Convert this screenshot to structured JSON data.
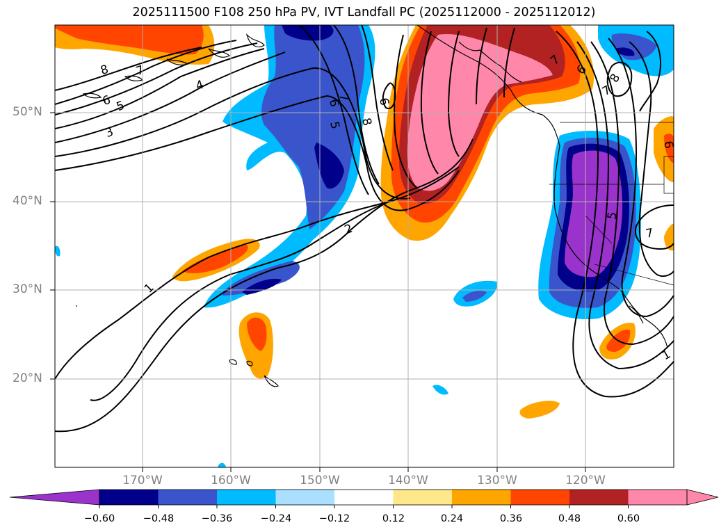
{
  "title": "2025111500 F108 250 hPa PV, IVT Landfall PC (2025112000 - 2025112012)",
  "lat_labels": [
    "50°N",
    "40°N",
    "30°N",
    "20°N"
  ],
  "lon_labels": [
    "170°W",
    "160°W",
    "150°W",
    "140°W",
    "130°W",
    "120°W"
  ],
  "colorbar": {
    "ticks": [
      "−0.60",
      "−0.48",
      "−0.36",
      "−0.24",
      "−0.12",
      "0.12",
      "0.24",
      "0.36",
      "0.48",
      "0.60"
    ],
    "colors": [
      "#9933cc",
      "#00008b",
      "#3a55cc",
      "#00bbff",
      "#aadfff",
      "#ffffff",
      "#ffe88a",
      "#ffa500",
      "#ff4500",
      "#b22222",
      "#ff88aa",
      "#ff88aa"
    ]
  },
  "contour_labels": [
    "8",
    "7",
    "4",
    "6",
    "5",
    "3",
    "1",
    "2",
    "7",
    "6",
    "5",
    "8",
    "6",
    "7",
    "7",
    "6",
    "8",
    "6",
    "5",
    "7",
    "1"
  ]
}
